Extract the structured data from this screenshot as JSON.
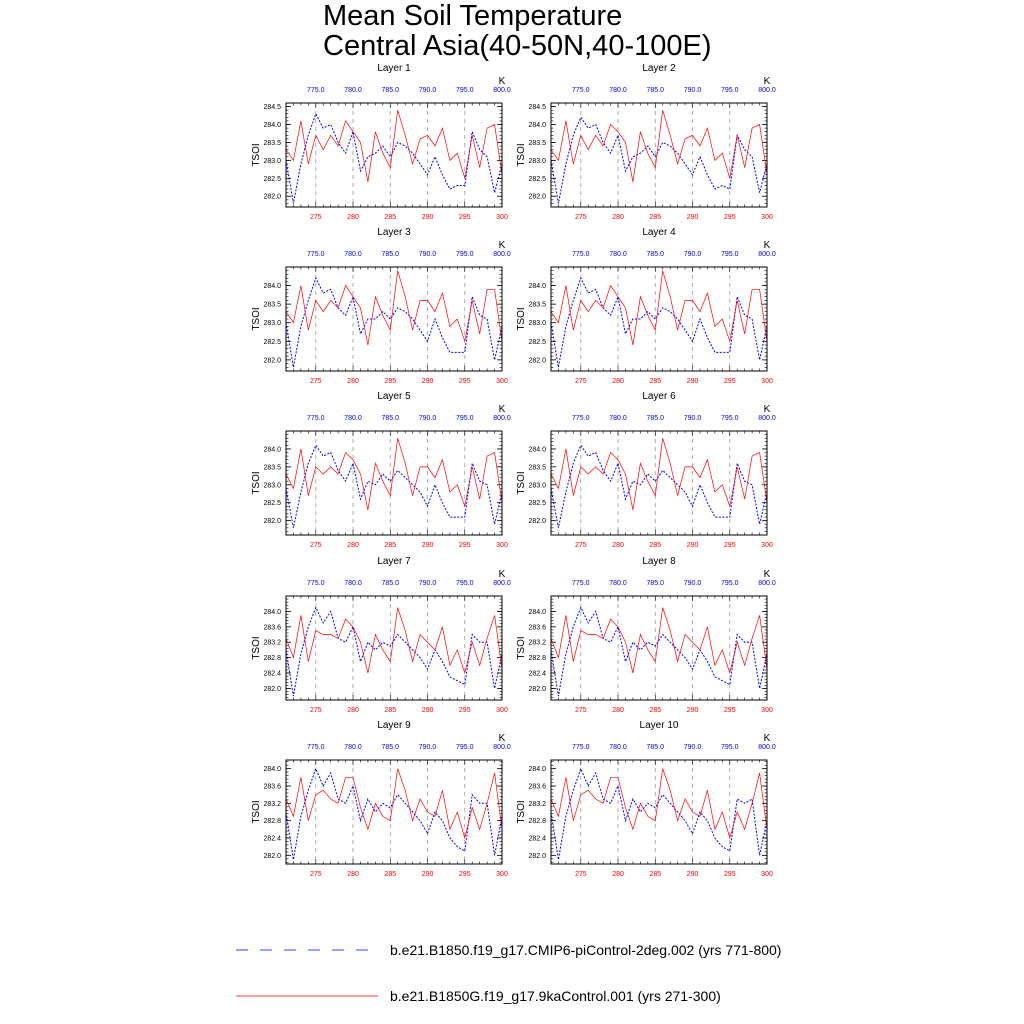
{
  "figure": {
    "title_line1": "Mean Soil Temperature",
    "title_line2": "Central Asia(40-50N,40-100E)"
  },
  "legend": {
    "control_label": "b.e21.B1850.f19_g17.CMIP6-piControl-2deg.002 (yrs 771-800)",
    "ka9_label": "b.e21.B1850G.f19_g17.9kaControl.001 (yrs 271-300)",
    "control_color": "#0000ff",
    "ka9_color": "#ff0000"
  },
  "chart_data": {
    "type": "line",
    "ylabel": "TSOI",
    "top_axis_unit": "K",
    "bottom_axis": {
      "range": [
        271,
        300
      ],
      "ticks": [
        "275",
        "280",
        "285",
        "290",
        "295",
        "300"
      ],
      "color": "#ff0000"
    },
    "top_axis": {
      "range": [
        771,
        800
      ],
      "ticks": [
        "775.0",
        "780.0",
        "785.0",
        "790.0",
        "795.0",
        "800.0"
      ],
      "color": "#0000ff"
    },
    "grid": "vertical dashed gray lines at bottom-axis major ticks",
    "legend_position": "bottom",
    "panels": [
      {
        "title": "Layer 1",
        "ylim": [
          281.7,
          284.6
        ],
        "yticks": [
          "282.0",
          "282.5",
          "283.0",
          "283.5",
          "284.0",
          "284.5"
        ],
        "series": [
          {
            "name": "b.e21.B1850.f19_g17.CMIP6-piControl-2deg.002 (yrs 771-800)",
            "values": [
              283.0,
              281.8,
              282.9,
              283.7,
              284.3,
              283.9,
              284.0,
              283.5,
              283.2,
              283.8,
              282.7,
              283.1,
              283.2,
              283.4,
              283.1,
              283.5,
              283.4,
              283.2,
              282.9,
              282.6,
              283.1,
              282.6,
              282.2,
              282.3,
              282.3,
              283.8,
              283.3,
              283.1,
              282.1,
              282.9
            ]
          },
          {
            "name": "b.e21.B1850G.f19_g17.9kaControl.001 (yrs 271-300)",
            "values": [
              283.3,
              283.0,
              284.1,
              282.9,
              283.7,
              283.3,
              283.7,
              283.4,
              284.1,
              283.8,
              283.5,
              282.4,
              283.8,
              283.2,
              282.8,
              284.4,
              283.7,
              282.9,
              283.6,
              283.7,
              283.4,
              283.9,
              283.0,
              283.2,
              282.5,
              283.7,
              282.8,
              283.9,
              284.0,
              282.6
            ]
          }
        ]
      },
      {
        "title": "Layer 2",
        "ylim": [
          281.7,
          284.6
        ],
        "yticks": [
          "282.0",
          "282.5",
          "283.0",
          "283.5",
          "284.0",
          "284.5"
        ],
        "series": [
          {
            "name": "b.e21.B1850.f19_g17.CMIP6-piControl-2deg.002 (yrs 771-800)",
            "values": [
              283.0,
              281.8,
              282.9,
              283.7,
              284.2,
              283.9,
              284.0,
              283.5,
              283.2,
              283.7,
              282.7,
              283.1,
              283.2,
              283.4,
              283.1,
              283.5,
              283.4,
              283.2,
              282.9,
              282.6,
              283.1,
              282.6,
              282.2,
              282.3,
              282.2,
              283.7,
              283.3,
              283.1,
              282.1,
              282.9
            ]
          },
          {
            "name": "b.e21.B1850G.f19_g17.9kaControl.001 (yrs 271-300)",
            "values": [
              283.3,
              283.0,
              284.1,
              282.9,
              283.7,
              283.3,
              283.7,
              283.4,
              284.0,
              283.8,
              283.5,
              282.4,
              283.8,
              283.2,
              282.8,
              284.4,
              283.7,
              282.9,
              283.6,
              283.7,
              283.4,
              283.9,
              283.0,
              283.2,
              282.5,
              283.7,
              282.8,
              283.9,
              284.0,
              282.6
            ]
          }
        ]
      },
      {
        "title": "Layer 3",
        "ylim": [
          281.7,
          284.5
        ],
        "yticks": [
          "282.0",
          "282.5",
          "283.0",
          "283.5",
          "284.0"
        ],
        "series": [
          {
            "name": "b.e21.B1850.f19_g17.CMIP6-piControl-2deg.002 (yrs 771-800)",
            "values": [
              283.0,
              281.8,
              282.9,
              283.6,
              284.2,
              283.8,
              283.9,
              283.4,
              283.2,
              283.7,
              282.7,
              283.1,
              283.1,
              283.3,
              283.1,
              283.4,
              283.3,
              283.1,
              282.8,
              282.5,
              283.1,
              282.6,
              282.2,
              282.2,
              282.2,
              283.7,
              283.2,
              283.1,
              282.0,
              282.9
            ]
          },
          {
            "name": "b.e21.B1850G.f19_g17.9kaControl.001 (yrs 271-300)",
            "values": [
              283.3,
              283.0,
              284.0,
              282.8,
              283.6,
              283.3,
              283.6,
              283.4,
              284.0,
              283.7,
              283.4,
              282.4,
              283.7,
              283.2,
              282.8,
              284.4,
              283.7,
              282.8,
              283.6,
              283.6,
              283.3,
              283.8,
              282.9,
              283.1,
              282.5,
              283.6,
              282.7,
              283.9,
              283.9,
              282.5
            ]
          }
        ]
      },
      {
        "title": "Layer 4",
        "ylim": [
          281.7,
          284.5
        ],
        "yticks": [
          "282.0",
          "282.5",
          "283.0",
          "283.5",
          "284.0"
        ],
        "series": [
          {
            "name": "b.e21.B1850.f19_g17.CMIP6-piControl-2deg.002 (yrs 771-800)",
            "values": [
              283.0,
              281.8,
              282.9,
              283.6,
              284.2,
              283.8,
              283.9,
              283.4,
              283.2,
              283.7,
              282.7,
              283.1,
              283.1,
              283.3,
              283.1,
              283.4,
              283.3,
              283.1,
              282.8,
              282.5,
              283.1,
              282.6,
              282.2,
              282.2,
              282.2,
              283.7,
              283.2,
              283.1,
              282.0,
              282.9
            ]
          },
          {
            "name": "b.e21.B1850G.f19_g17.9kaControl.001 (yrs 271-300)",
            "values": [
              283.3,
              283.0,
              284.0,
              282.8,
              283.6,
              283.3,
              283.6,
              283.4,
              284.0,
              283.7,
              283.4,
              282.4,
              283.7,
              283.2,
              282.8,
              284.4,
              283.7,
              282.8,
              283.6,
              283.6,
              283.3,
              283.8,
              282.9,
              283.1,
              282.5,
              283.6,
              282.7,
              283.9,
              283.9,
              282.5
            ]
          }
        ]
      },
      {
        "title": "Layer 5",
        "ylim": [
          281.6,
          284.5
        ],
        "yticks": [
          "282.0",
          "282.5",
          "283.0",
          "283.5",
          "284.0"
        ],
        "series": [
          {
            "name": "b.e21.B1850.f19_g17.CMIP6-piControl-2deg.002 (yrs 771-800)",
            "values": [
              282.9,
              281.8,
              282.8,
              283.6,
              284.1,
              283.8,
              283.9,
              283.4,
              283.1,
              283.6,
              282.6,
              283.1,
              283.0,
              283.3,
              283.1,
              283.4,
              283.2,
              283.0,
              282.8,
              282.4,
              283.0,
              282.5,
              282.1,
              282.1,
              282.1,
              283.6,
              283.1,
              283.0,
              281.9,
              282.8
            ]
          },
          {
            "name": "b.e21.B1850G.f19_g17.9kaControl.001 (yrs 271-300)",
            "values": [
              283.3,
              282.9,
              284.0,
              282.7,
              283.5,
              283.3,
              283.5,
              283.3,
              283.9,
              283.7,
              283.3,
              282.3,
              283.6,
              283.1,
              282.7,
              284.3,
              283.6,
              282.7,
              283.5,
              283.5,
              283.2,
              283.7,
              282.8,
              283.0,
              282.4,
              283.5,
              282.6,
              283.8,
              283.9,
              282.5
            ]
          }
        ]
      },
      {
        "title": "Layer 6",
        "ylim": [
          281.6,
          284.5
        ],
        "yticks": [
          "282.0",
          "282.5",
          "283.0",
          "283.5",
          "284.0"
        ],
        "series": [
          {
            "name": "b.e21.B1850.f19_g17.CMIP6-piControl-2deg.002 (yrs 771-800)",
            "values": [
              282.9,
              281.8,
              282.8,
              283.6,
              284.1,
              283.8,
              283.9,
              283.4,
              283.1,
              283.6,
              282.6,
              283.1,
              283.0,
              283.3,
              283.1,
              283.4,
              283.2,
              283.0,
              282.8,
              282.4,
              283.0,
              282.5,
              282.1,
              282.1,
              282.1,
              283.6,
              283.1,
              283.0,
              281.9,
              282.8
            ]
          },
          {
            "name": "b.e21.B1850G.f19_g17.9kaControl.001 (yrs 271-300)",
            "values": [
              283.3,
              282.9,
              284.0,
              282.7,
              283.5,
              283.3,
              283.5,
              283.3,
              283.9,
              283.7,
              283.3,
              282.3,
              283.6,
              283.1,
              282.7,
              284.3,
              283.6,
              282.7,
              283.5,
              283.5,
              283.2,
              283.7,
              282.8,
              283.0,
              282.4,
              283.5,
              282.6,
              283.8,
              283.9,
              282.5
            ]
          }
        ]
      },
      {
        "title": "Layer 7",
        "ylim": [
          281.7,
          284.4
        ],
        "yticks": [
          "282.0",
          "282.4",
          "282.8",
          "283.2",
          "283.6",
          "284.0"
        ],
        "series": [
          {
            "name": "b.e21.B1850.f19_g17.CMIP6-piControl-2deg.002 (yrs 771-800)",
            "values": [
              283.0,
              281.8,
              282.9,
              283.6,
              284.1,
              283.7,
              284.0,
              283.3,
              283.2,
              283.6,
              282.7,
              283.2,
              283.0,
              283.2,
              283.1,
              283.4,
              283.2,
              283.0,
              282.8,
              282.5,
              283.0,
              282.7,
              282.3,
              282.2,
              282.1,
              283.4,
              283.2,
              283.2,
              282.0,
              282.9
            ]
          },
          {
            "name": "b.e21.B1850G.f19_g17.9kaControl.001 (yrs 271-300)",
            "values": [
              283.3,
              282.8,
              283.9,
              282.7,
              283.5,
              283.4,
              283.4,
              283.3,
              283.8,
              283.6,
              283.2,
              282.4,
              283.4,
              283.0,
              282.7,
              284.1,
              283.5,
              282.7,
              283.4,
              283.2,
              283.0,
              283.6,
              282.6,
              283.0,
              282.4,
              283.2,
              282.6,
              283.3,
              283.9,
              282.5
            ]
          }
        ]
      },
      {
        "title": "Layer 8",
        "ylim": [
          281.7,
          284.4
        ],
        "yticks": [
          "282.0",
          "282.4",
          "282.8",
          "283.2",
          "283.6",
          "284.0"
        ],
        "series": [
          {
            "name": "b.e21.B1850.f19_g17.CMIP6-piControl-2deg.002 (yrs 771-800)",
            "values": [
              283.0,
              281.8,
              282.9,
              283.6,
              284.1,
              283.7,
              284.0,
              283.3,
              283.2,
              283.6,
              282.7,
              283.2,
              283.0,
              283.2,
              283.1,
              283.4,
              283.2,
              283.0,
              282.8,
              282.5,
              283.0,
              282.7,
              282.3,
              282.2,
              282.1,
              283.4,
              283.2,
              283.2,
              282.0,
              282.9
            ]
          },
          {
            "name": "b.e21.B1850G.f19_g17.9kaControl.001 (yrs 271-300)",
            "values": [
              283.3,
              282.8,
              283.9,
              282.7,
              283.5,
              283.4,
              283.4,
              283.3,
              283.8,
              283.6,
              283.2,
              282.4,
              283.4,
              283.0,
              282.7,
              284.1,
              283.5,
              282.7,
              283.4,
              283.2,
              283.0,
              283.6,
              282.6,
              283.0,
              282.4,
              283.2,
              282.6,
              283.3,
              283.9,
              282.5
            ]
          }
        ]
      },
      {
        "title": "Layer 9",
        "ylim": [
          281.8,
          284.2
        ],
        "yticks": [
          "282.0",
          "282.4",
          "282.8",
          "283.2",
          "283.6",
          "284.0"
        ],
        "series": [
          {
            "name": "b.e21.B1850.f19_g17.CMIP6-piControl-2deg.002 (yrs 771-800)",
            "values": [
              283.0,
              281.9,
              282.9,
              283.5,
              284.0,
              283.6,
              283.9,
              283.3,
              283.2,
              283.6,
              282.8,
              283.3,
              283.0,
              283.2,
              283.1,
              283.4,
              283.2,
              283.0,
              282.8,
              282.5,
              283.0,
              282.8,
              282.4,
              282.2,
              282.1,
              283.4,
              283.2,
              283.2,
              282.0,
              282.9
            ]
          },
          {
            "name": "b.e21.B1850G.f19_g17.9kaControl.001 (yrs 271-300)",
            "values": [
              283.3,
              282.9,
              283.8,
              282.8,
              283.4,
              283.5,
              283.3,
              283.2,
              283.8,
              283.8,
              283.1,
              282.6,
              283.2,
              282.9,
              282.8,
              284.0,
              283.5,
              282.8,
              283.3,
              283.0,
              282.9,
              283.5,
              282.6,
              283.0,
              282.4,
              283.1,
              282.6,
              283.2,
              283.9,
              282.6
            ]
          }
        ]
      },
      {
        "title": "Layer 10",
        "ylim": [
          281.8,
          284.2
        ],
        "yticks": [
          "282.0",
          "282.4",
          "282.8",
          "283.2",
          "283.6",
          "284.0"
        ],
        "series": [
          {
            "name": "b.e21.B1850.f19_g17.CMIP6-piControl-2deg.002 (yrs 771-800)",
            "values": [
              283.0,
              281.9,
              282.9,
              283.5,
              284.0,
              283.6,
              283.9,
              283.3,
              283.2,
              283.6,
              282.8,
              283.3,
              283.0,
              283.2,
              283.1,
              283.4,
              283.2,
              283.0,
              282.8,
              282.5,
              283.0,
              282.8,
              282.4,
              282.2,
              282.1,
              283.3,
              283.2,
              283.3,
              282.0,
              282.8
            ]
          },
          {
            "name": "b.e21.B1850G.f19_g17.9kaControl.001 (yrs 271-300)",
            "values": [
              283.3,
              282.9,
              283.8,
              282.8,
              283.4,
              283.5,
              283.3,
              283.2,
              283.8,
              283.8,
              283.1,
              282.6,
              283.2,
              282.9,
              282.8,
              284.0,
              283.5,
              282.8,
              283.3,
              283.0,
              282.9,
              283.5,
              282.6,
              283.0,
              282.4,
              283.0,
              282.6,
              283.2,
              283.9,
              282.6
            ]
          }
        ]
      }
    ]
  }
}
